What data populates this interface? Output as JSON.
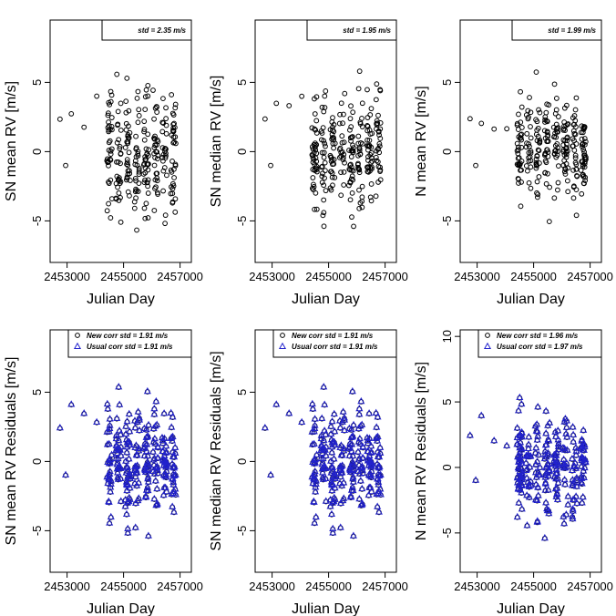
{
  "chart_data": [
    {
      "type": "scatter",
      "ylabel": "SN mean RV [m/s]",
      "xlabel": "Julian Day",
      "xlim": [
        2452400,
        2457400
      ],
      "ylim": [
        -8,
        9.5
      ],
      "xticks": [
        2453000,
        2455000,
        2457000
      ],
      "yticks": [
        -5,
        0,
        5
      ],
      "xtick_labels": [
        "2453000",
        "2455000",
        "2457000"
      ],
      "ytick_labels": [
        "-5",
        "0",
        "5"
      ],
      "legend": {
        "placement": "top-right",
        "entries": [
          {
            "text": "std =  2.35 m/s",
            "marker": "none"
          }
        ]
      },
      "series": [
        {
          "marker": "circle",
          "seed": 11,
          "spread": 2.35,
          "offset": 0
        }
      ]
    },
    {
      "type": "scatter",
      "ylabel": "SN median RV [m/s]",
      "xlabel": "Julian Day",
      "xlim": [
        2452400,
        2457400
      ],
      "ylim": [
        -8,
        9.5
      ],
      "xticks": [
        2453000,
        2455000,
        2457000
      ],
      "yticks": [
        -5,
        0,
        5
      ],
      "xtick_labels": [
        "2453000",
        "2455000",
        "2457000"
      ],
      "ytick_labels": [
        "-5",
        "0",
        "5"
      ],
      "legend": {
        "placement": "top-right",
        "entries": [
          {
            "text": "std =  1.95 m/s",
            "marker": "none"
          }
        ]
      },
      "series": [
        {
          "marker": "circle",
          "seed": 23,
          "spread": 1.95,
          "offset": 0
        }
      ]
    },
    {
      "type": "scatter",
      "ylabel": "N mean RV [m/s]",
      "xlabel": "Julian Day",
      "xlim": [
        2452400,
        2457400
      ],
      "ylim": [
        -8,
        9.5
      ],
      "xticks": [
        2453000,
        2455000,
        2457000
      ],
      "yticks": [
        -5,
        0,
        5
      ],
      "xtick_labels": [
        "2453000",
        "2455000",
        "2457000"
      ],
      "ytick_labels": [
        "-5",
        "0",
        "5"
      ],
      "legend": {
        "placement": "top-right",
        "entries": [
          {
            "text": "std =  1.99 m/s",
            "marker": "none"
          }
        ]
      },
      "series": [
        {
          "marker": "circle",
          "seed": 37,
          "spread": 1.99,
          "offset": 0
        }
      ]
    },
    {
      "type": "scatter",
      "ylabel": "SN mean RV Residuals [m/s]",
      "xlabel": "Julian Day",
      "xlim": [
        2452400,
        2457400
      ],
      "ylim": [
        -8,
        9.5
      ],
      "xticks": [
        2453000,
        2455000,
        2457000
      ],
      "yticks": [
        -5,
        0,
        5
      ],
      "xtick_labels": [
        "2453000",
        "2455000",
        "2457000"
      ],
      "ytick_labels": [
        "-5",
        "0",
        "5"
      ],
      "legend": {
        "placement": "top-right",
        "entries": [
          {
            "text": "New corr std =  1.91 m/s",
            "marker": "circle"
          },
          {
            "text": "Usual corr std =  1.91 m/s",
            "marker": "triangle"
          }
        ]
      },
      "series": [
        {
          "marker": "circle",
          "seed": 51,
          "spread": 1.91,
          "offset": 0
        },
        {
          "marker": "triangle",
          "seed": 51,
          "spread": 1.91,
          "offset": 0
        }
      ]
    },
    {
      "type": "scatter",
      "ylabel": "SN median RV Residuals [m/s]",
      "xlabel": "Julian Day",
      "xlim": [
        2452400,
        2457400
      ],
      "ylim": [
        -8,
        9.5
      ],
      "xticks": [
        2453000,
        2455000,
        2457000
      ],
      "yticks": [
        -5,
        0,
        5
      ],
      "xtick_labels": [
        "2453000",
        "2455000",
        "2457000"
      ],
      "ytick_labels": [
        "-5",
        "0",
        "5"
      ],
      "legend": {
        "placement": "top-right",
        "entries": [
          {
            "text": "New corr std =  1.91 m/s",
            "marker": "circle"
          },
          {
            "text": "Usual corr std =  1.91 m/s",
            "marker": "triangle"
          }
        ]
      },
      "series": [
        {
          "marker": "circle",
          "seed": 51,
          "spread": 1.91,
          "offset": 0
        },
        {
          "marker": "triangle",
          "seed": 51,
          "spread": 1.91,
          "offset": 0
        }
      ]
    },
    {
      "type": "scatter",
      "ylabel": "N mean RV Residuals [m/s]",
      "xlabel": "Julian Day",
      "xlim": [
        2452400,
        2457400
      ],
      "ylim": [
        -8,
        10.5
      ],
      "xticks": [
        2453000,
        2455000,
        2457000
      ],
      "yticks": [
        -5,
        0,
        5,
        10
      ],
      "xtick_labels": [
        "2453000",
        "2455000",
        "2457000"
      ],
      "ytick_labels": [
        "-5",
        "0",
        "5",
        "10"
      ],
      "legend": {
        "placement": "top-right",
        "entries": [
          {
            "text": "New corr std =  1.96 m/s",
            "marker": "circle"
          },
          {
            "text": "Usual corr std =  1.97 m/s",
            "marker": "triangle"
          }
        ]
      },
      "series": [
        {
          "marker": "circle",
          "seed": 67,
          "spread": 1.96,
          "offset": 0
        },
        {
          "marker": "triangle",
          "seed": 67,
          "spread": 1.97,
          "offset": 0
        }
      ]
    }
  ]
}
